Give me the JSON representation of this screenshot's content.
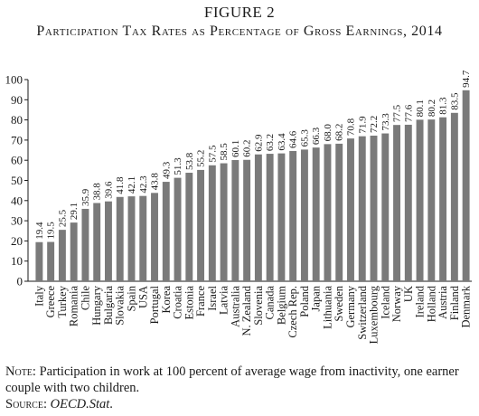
{
  "figure": {
    "label": "FIGURE 2",
    "title": "Participation Tax Rates as Percentage of Gross Earnings, 2014"
  },
  "chart_data": {
    "type": "bar",
    "categories": [
      "Italy",
      "Greece",
      "Turkey",
      "Romania",
      "Chile",
      "Hungary",
      "Bulgaria",
      "Slovakia",
      "Spain",
      "USA",
      "Portugal",
      "Korea",
      "Croatia",
      "Estonia",
      "France",
      "Israel",
      "Latvia",
      "Australia",
      "N. Zealand",
      "Slovenia",
      "Canada",
      "Belgium",
      "Czech Rep.",
      "Poland",
      "Japan",
      "Lithuania",
      "Sweden",
      "Germany",
      "Switzerland",
      "Luxembourg",
      "Iceland",
      "Norway",
      "UK",
      "Ireland",
      "Holland",
      "Austria",
      "Finland",
      "Denmark"
    ],
    "values": [
      19.4,
      19.5,
      25.5,
      29.1,
      35.9,
      38.8,
      39.6,
      41.8,
      42.1,
      42.3,
      43.8,
      49.3,
      51.3,
      53.8,
      55.2,
      57.5,
      58.5,
      60.1,
      60.2,
      62.9,
      63.2,
      63.4,
      64.6,
      65.3,
      66.3,
      68.0,
      68.2,
      70.8,
      71.9,
      72.2,
      73.3,
      77.5,
      77.6,
      80.1,
      80.2,
      81.3,
      83.5,
      94.7
    ],
    "value_labels": [
      "19.4",
      "19.5",
      "25.5",
      "29.1",
      "35.9",
      "38.8",
      "39.6",
      "41.8",
      "42.1",
      "42.3",
      "43.8",
      "49.3",
      "51.3",
      "53.8",
      "55.2",
      "57.5",
      "58.5",
      "60.1",
      "60.2",
      "62.9",
      "63.2",
      "63.4",
      "64.6",
      "65.3",
      "66.3",
      "68.0",
      "68.2",
      "70.8",
      "71.9",
      "72.2",
      "73.3",
      "77.5",
      "77.6",
      "80.1",
      "80.2",
      "81.3",
      "83.5",
      "94.7"
    ],
    "y_ticks": [
      "0",
      "10",
      "20",
      "30",
      "40",
      "50",
      "60",
      "70",
      "80",
      "90",
      "100"
    ],
    "ylim": [
      0,
      100
    ],
    "xlabel": "",
    "ylabel": "",
    "bar_color": "#7a7a7a",
    "grid": false,
    "legend": false
  },
  "notes": {
    "note_lead": "Note:",
    "note_text": " Participation in work at 100 percent of average wage from inactivity, one earner couple with two children.",
    "source_lead": "Source:",
    "source_name": "OECD.Stat",
    "source_end": "."
  }
}
